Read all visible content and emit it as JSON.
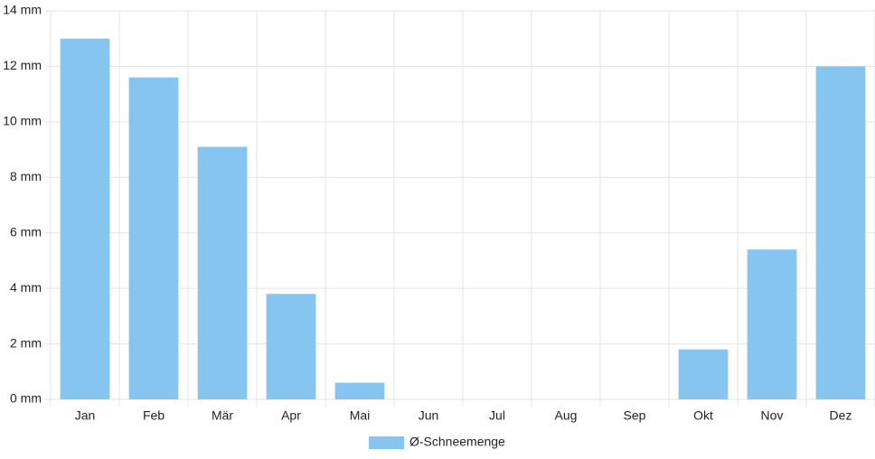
{
  "chart_data": {
    "type": "bar",
    "categories": [
      "Jan",
      "Feb",
      "Mär",
      "Apr",
      "Mai",
      "Jun",
      "Jul",
      "Aug",
      "Sep",
      "Okt",
      "Nov",
      "Dez"
    ],
    "series": [
      {
        "name": "Ø-Schneemenge",
        "color": "#87c5f1",
        "values": [
          13.0,
          11.6,
          9.1,
          3.8,
          0.6,
          0,
          0,
          0,
          0,
          1.8,
          5.4,
          12.0
        ]
      }
    ],
    "ylim": [
      0,
      14
    ],
    "yticks": [
      {
        "value": 0,
        "label": "0 mm"
      },
      {
        "value": 2,
        "label": "2 mm"
      },
      {
        "value": 4,
        "label": "4 mm"
      },
      {
        "value": 6,
        "label": "6 mm"
      },
      {
        "value": 8,
        "label": "8 mm"
      },
      {
        "value": 10,
        "label": "10 mm"
      },
      {
        "value": 12,
        "label": "12 mm"
      },
      {
        "value": 14,
        "label": "14 mm"
      }
    ],
    "grid": true,
    "legend": "bottom"
  }
}
